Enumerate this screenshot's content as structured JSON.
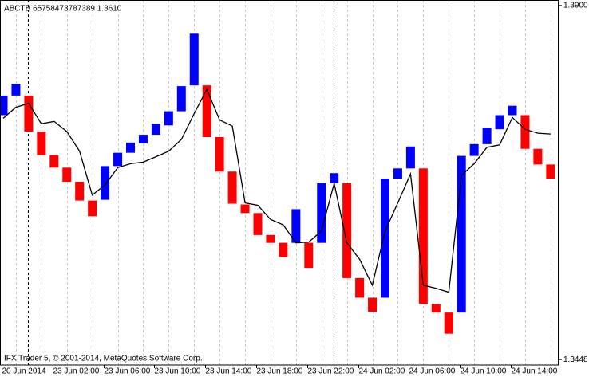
{
  "chart_data": {
    "type": "candlestick",
    "header": "ABCTB 65758473787389 1.3610",
    "footer": "IFX Trader 5, © 2001-2014, MetaQuotes Software Corp.",
    "categories": [
      "20 Jun 2014",
      null,
      null,
      null,
      "23 Jun 02:00",
      null,
      null,
      null,
      "23 Jun 06:00",
      null,
      null,
      null,
      "23 Jun 10:00",
      null,
      null,
      null,
      "23 Jun 14:00",
      null,
      null,
      null,
      "23 Jun 18:00",
      null,
      null,
      null,
      "23 Jun 22:00",
      null,
      null,
      null,
      "24 Jun 02:00",
      null,
      null,
      null,
      "24 Jun 06:00",
      null,
      null,
      null,
      "24 Jun 10:00",
      null,
      null,
      null,
      "24 Jun 14:00",
      null,
      null,
      null
    ],
    "open": [
      1.376,
      1.3785,
      1.3785,
      1.3739,
      1.3709,
      1.3693,
      1.3675,
      1.3651,
      1.3652,
      1.3695,
      1.3712,
      1.3724,
      1.3735,
      1.3747,
      1.3765,
      1.3798,
      1.3798,
      1.3732,
      1.3688,
      1.3646,
      1.3635,
      1.3607,
      1.3597,
      1.3597,
      1.3597,
      1.3597,
      1.3673,
      1.3673,
      1.3552,
      1.3527,
      1.3527,
      1.3679,
      1.3692,
      1.3692,
      1.3519,
      1.3508,
      1.3508,
      1.3708,
      1.3723,
      1.3742,
      1.376,
      1.376,
      1.3717,
      1.3697
    ],
    "close": [
      1.3785,
      1.38,
      1.3739,
      1.3709,
      1.3693,
      1.3675,
      1.3651,
      1.3631,
      1.3695,
      1.3712,
      1.3725,
      1.3735,
      1.3749,
      1.3765,
      1.3797,
      1.3864,
      1.3732,
      1.3688,
      1.3647,
      1.3635,
      1.3607,
      1.3597,
      1.3579,
      1.364,
      1.3565,
      1.3673,
      1.3686,
      1.3552,
      1.3527,
      1.3509,
      1.3679,
      1.3692,
      1.372,
      1.3519,
      1.3508,
      1.3481,
      1.3708,
      1.3723,
      1.3744,
      1.376,
      1.3772,
      1.3717,
      1.3697,
      1.3679
    ],
    "up_color": "#0000ff",
    "down_color": "#ff0000",
    "line": {
      "color": "#000000",
      "values": [
        1.3756,
        1.377,
        1.3775,
        1.3749,
        1.3752,
        1.3739,
        1.3714,
        1.3658,
        1.3671,
        1.3693,
        1.3698,
        1.37,
        1.3707,
        1.3714,
        1.3729,
        1.3762,
        1.3793,
        1.3754,
        1.3746,
        1.3648,
        1.3645,
        1.3627,
        1.362,
        1.3597,
        1.3598,
        1.3612,
        1.3673,
        1.3597,
        1.3576,
        1.3543,
        1.3612,
        1.3648,
        1.3685,
        1.3543,
        1.3539,
        1.3534,
        1.3683,
        1.3698,
        1.3719,
        1.3722,
        1.3757,
        1.3742,
        1.3737,
        1.3736
      ]
    },
    "ylim": [
      1.3441,
      1.3907
    ],
    "yticks": [
      {
        "value": 1.39,
        "label": "1.3900"
      },
      1.3448
    ],
    "grid": true
  }
}
